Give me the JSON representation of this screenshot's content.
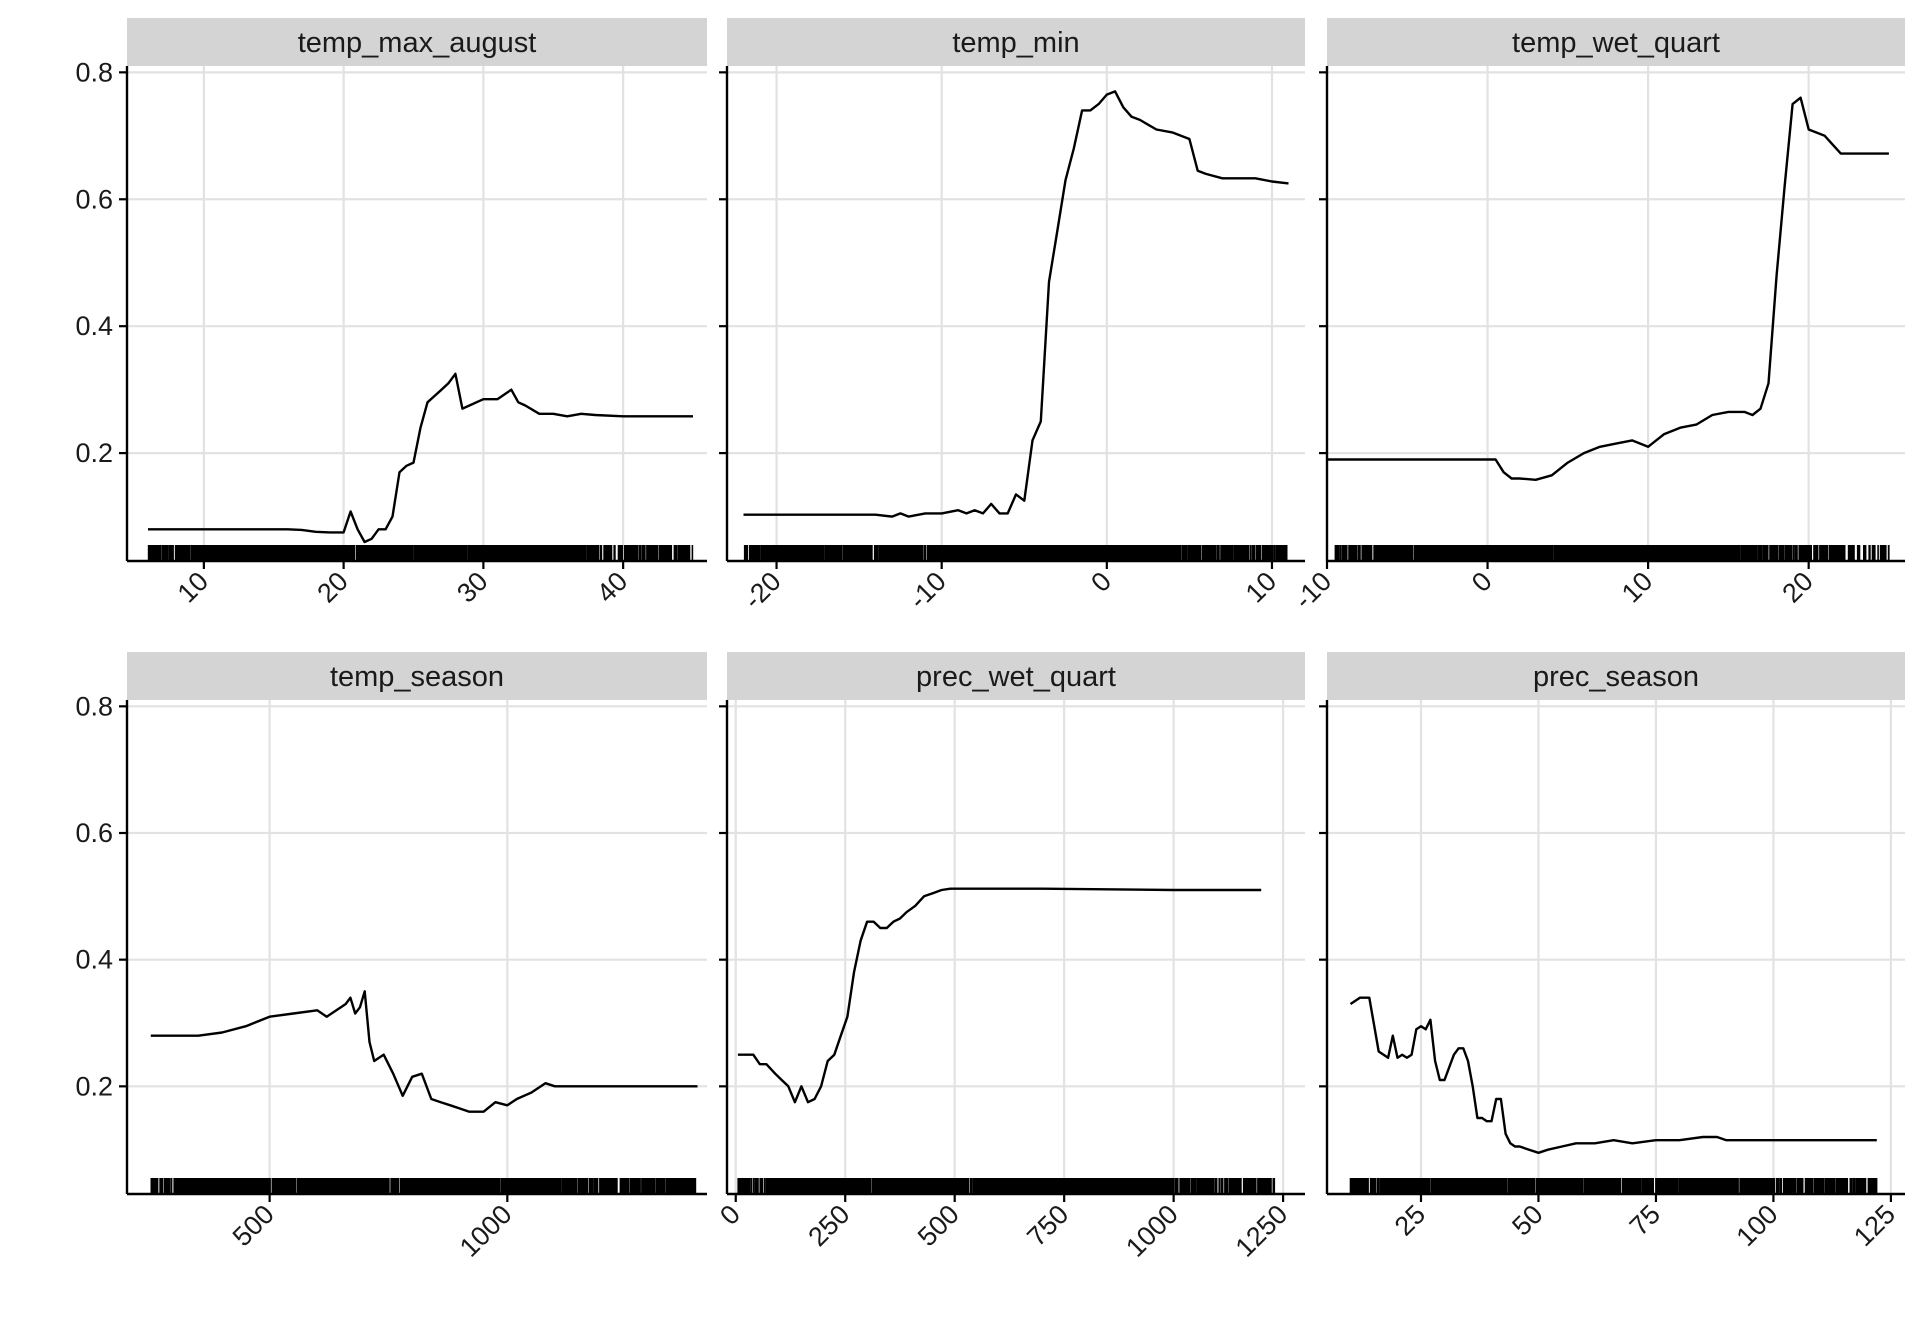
{
  "chart_data": [
    {
      "type": "line",
      "title": "temp_max_august",
      "xlim": [
        4.5,
        46
      ],
      "ylim": [
        0.03,
        0.81
      ],
      "xticks": [
        10,
        20,
        30,
        40
      ],
      "yticks": [
        0.2,
        0.4,
        0.6,
        0.8
      ],
      "ytick_labels": [
        "0.2",
        "0.4",
        "0.6",
        "0.8"
      ],
      "grid": true,
      "rug_range": [
        6,
        45
      ],
      "x": [
        6,
        10,
        15,
        16,
        17,
        18,
        19,
        19.5,
        20,
        20.5,
        21,
        21.5,
        22,
        22.5,
        23,
        23.5,
        24,
        24.5,
        25,
        25.5,
        26,
        26.5,
        27,
        27.5,
        28,
        28.5,
        29,
        29.5,
        30,
        31,
        32,
        32.5,
        33,
        34,
        35,
        36,
        37,
        38,
        40,
        42,
        45
      ],
      "values": [
        0.08,
        0.08,
        0.08,
        0.08,
        0.079,
        0.076,
        0.075,
        0.075,
        0.075,
        0.108,
        0.08,
        0.06,
        0.065,
        0.08,
        0.08,
        0.1,
        0.17,
        0.18,
        0.185,
        0.24,
        0.28,
        0.29,
        0.3,
        0.31,
        0.325,
        0.27,
        0.275,
        0.28,
        0.285,
        0.285,
        0.3,
        0.28,
        0.275,
        0.262,
        0.262,
        0.258,
        0.262,
        0.26,
        0.258,
        0.258,
        0.258
      ]
    },
    {
      "type": "line",
      "title": "temp_min",
      "xlim": [
        -23,
        12
      ],
      "ylim": [
        0.03,
        0.81
      ],
      "xticks": [
        -20,
        -10,
        0,
        10
      ],
      "yticks": [
        0.2,
        0.4,
        0.6,
        0.8
      ],
      "ytick_labels": [
        "0.2",
        "0.4",
        "0.6",
        "0.8"
      ],
      "grid": true,
      "rug_range": [
        -22,
        11
      ],
      "x": [
        -22,
        -18,
        -14,
        -13,
        -12.5,
        -12,
        -11,
        -10,
        -9,
        -8.5,
        -8,
        -7.5,
        -7,
        -6.5,
        -6,
        -5.5,
        -5,
        -4.5,
        -4,
        -3.5,
        -3,
        -2.5,
        -2,
        -1.5,
        -1,
        -0.5,
        0,
        0.5,
        1,
        1.5,
        2,
        3,
        4,
        5,
        5.5,
        6,
        7,
        8,
        9,
        10,
        11
      ],
      "values": [
        0.103,
        0.103,
        0.103,
        0.1,
        0.105,
        0.1,
        0.105,
        0.105,
        0.11,
        0.105,
        0.11,
        0.105,
        0.12,
        0.105,
        0.105,
        0.135,
        0.125,
        0.22,
        0.25,
        0.47,
        0.55,
        0.63,
        0.68,
        0.74,
        0.74,
        0.75,
        0.765,
        0.77,
        0.745,
        0.73,
        0.725,
        0.71,
        0.705,
        0.695,
        0.645,
        0.64,
        0.633,
        0.633,
        0.633,
        0.628,
        0.625
      ]
    },
    {
      "type": "line",
      "title": "temp_wet_quart",
      "xlim": [
        -10,
        26
      ],
      "ylim": [
        0.03,
        0.81
      ],
      "xticks": [
        -10,
        0,
        10,
        20
      ],
      "yticks": [
        0.2,
        0.4,
        0.6,
        0.8
      ],
      "ytick_labels": [
        "0.2",
        "0.4",
        "0.6",
        "0.8"
      ],
      "grid": true,
      "rug_range": [
        -9.5,
        25
      ],
      "x": [
        -10,
        -5,
        0,
        0.5,
        1,
        1.5,
        2,
        3,
        4,
        5,
        6,
        7,
        8,
        9,
        10,
        11,
        12,
        13,
        14,
        15,
        16,
        16.5,
        17,
        17.5,
        18,
        18.5,
        19,
        19.5,
        20,
        21,
        22,
        25
      ],
      "values": [
        0.19,
        0.19,
        0.19,
        0.19,
        0.17,
        0.16,
        0.16,
        0.158,
        0.165,
        0.185,
        0.2,
        0.21,
        0.215,
        0.22,
        0.21,
        0.23,
        0.24,
        0.245,
        0.26,
        0.265,
        0.265,
        0.26,
        0.27,
        0.31,
        0.48,
        0.62,
        0.75,
        0.76,
        0.71,
        0.7,
        0.672,
        0.672
      ]
    },
    {
      "type": "line",
      "title": "temp_season",
      "xlim": [
        200,
        1420
      ],
      "ylim": [
        0.03,
        0.81
      ],
      "xticks": [
        500,
        1000
      ],
      "yticks": [
        0.2,
        0.4,
        0.6,
        0.8
      ],
      "ytick_labels": [
        "0.2",
        "0.4",
        "0.6",
        "0.8"
      ],
      "grid": true,
      "rug_range": [
        250,
        1400
      ],
      "x": [
        250,
        350,
        400,
        450,
        500,
        550,
        600,
        620,
        650,
        660,
        670,
        680,
        690,
        700,
        710,
        720,
        740,
        760,
        780,
        800,
        820,
        840,
        860,
        880,
        900,
        920,
        950,
        975,
        1000,
        1020,
        1050,
        1080,
        1100,
        1150,
        1400
      ],
      "values": [
        0.28,
        0.28,
        0.285,
        0.295,
        0.31,
        0.315,
        0.32,
        0.31,
        0.325,
        0.33,
        0.34,
        0.315,
        0.325,
        0.35,
        0.27,
        0.24,
        0.25,
        0.22,
        0.185,
        0.215,
        0.22,
        0.18,
        0.175,
        0.17,
        0.165,
        0.16,
        0.16,
        0.175,
        0.17,
        0.18,
        0.19,
        0.205,
        0.2,
        0.2,
        0.2
      ]
    },
    {
      "type": "line",
      "title": "prec_wet_quart",
      "xlim": [
        -20,
        1300
      ],
      "ylim": [
        0.03,
        0.81
      ],
      "xticks": [
        0,
        250,
        500,
        750,
        1000,
        1250
      ],
      "yticks": [
        0.2,
        0.4,
        0.6,
        0.8
      ],
      "ytick_labels": [
        "0.2",
        "0.4",
        "0.6",
        "0.8"
      ],
      "grid": true,
      "rug_range": [
        5,
        1230
      ],
      "x": [
        5,
        40,
        55,
        70,
        90,
        105,
        120,
        135,
        150,
        165,
        180,
        195,
        210,
        225,
        240,
        255,
        270,
        285,
        300,
        315,
        330,
        345,
        360,
        375,
        390,
        410,
        430,
        450,
        470,
        490,
        520,
        560,
        700,
        1000,
        1200
      ],
      "values": [
        0.25,
        0.25,
        0.235,
        0.235,
        0.22,
        0.21,
        0.2,
        0.175,
        0.2,
        0.175,
        0.18,
        0.2,
        0.24,
        0.25,
        0.28,
        0.31,
        0.38,
        0.43,
        0.46,
        0.46,
        0.45,
        0.45,
        0.46,
        0.465,
        0.475,
        0.485,
        0.5,
        0.505,
        0.51,
        0.512,
        0.512,
        0.512,
        0.512,
        0.51,
        0.51
      ]
    },
    {
      "type": "line",
      "title": "prec_season",
      "xlim": [
        5,
        128
      ],
      "ylim": [
        0.03,
        0.81
      ],
      "xticks": [
        25,
        50,
        75,
        100,
        125
      ],
      "yticks": [
        0.2,
        0.4,
        0.6,
        0.8
      ],
      "ytick_labels": [
        "0.2",
        "0.4",
        "0.6",
        "0.8"
      ],
      "grid": true,
      "rug_range": [
        10,
        122
      ],
      "x": [
        10,
        12,
        14,
        16,
        18,
        19,
        20,
        21,
        22,
        23,
        24,
        25,
        26,
        27,
        28,
        29,
        30,
        31,
        32,
        33,
        34,
        35,
        36,
        37,
        38,
        39,
        40,
        41,
        42,
        43,
        44,
        45,
        46,
        48,
        50,
        52,
        55,
        58,
        62,
        66,
        70,
        75,
        80,
        85,
        88,
        90,
        122
      ],
      "values": [
        0.33,
        0.34,
        0.34,
        0.255,
        0.245,
        0.28,
        0.245,
        0.25,
        0.245,
        0.25,
        0.29,
        0.295,
        0.29,
        0.305,
        0.24,
        0.21,
        0.21,
        0.23,
        0.25,
        0.26,
        0.26,
        0.24,
        0.2,
        0.15,
        0.15,
        0.145,
        0.145,
        0.18,
        0.18,
        0.125,
        0.11,
        0.105,
        0.105,
        0.1,
        0.095,
        0.1,
        0.105,
        0.11,
        0.11,
        0.115,
        0.11,
        0.115,
        0.115,
        0.12,
        0.12,
        0.115,
        0.115
      ]
    }
  ]
}
